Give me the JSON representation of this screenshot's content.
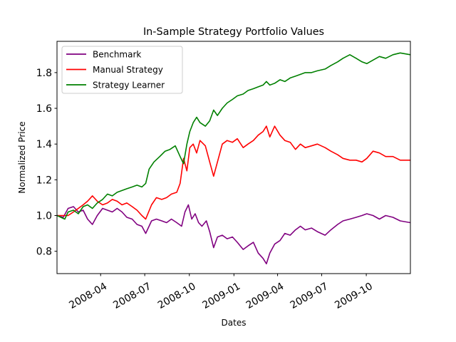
{
  "chart_data": {
    "type": "line",
    "title": "In-Sample Strategy Portfolio Values",
    "xlabel": "Dates",
    "ylabel": "Normalized Price",
    "xlim": [
      "2008-01-02",
      "2009-12-31"
    ],
    "ylim": [
      0.675,
      1.975
    ],
    "yticks": [
      0.8,
      1.0,
      1.2,
      1.4,
      1.6,
      1.8
    ],
    "ytick_labels": [
      "0.8",
      "1.0",
      "1.2",
      "1.4",
      "1.6",
      "1.8"
    ],
    "xticks": [
      "2008-04-01",
      "2008-07-01",
      "2008-10-01",
      "2009-01-01",
      "2009-04-01",
      "2009-07-01",
      "2009-10-01"
    ],
    "xtick_labels": [
      "2008-04",
      "2008-07",
      "2008-10",
      "2009-01",
      "2009-04",
      "2009-07",
      "2009-10"
    ],
    "grid": false,
    "legend_position": "upper-left",
    "series": [
      {
        "name": "Benchmark",
        "color": "#800080",
        "points": [
          [
            "2008-01-02",
            1.0
          ],
          [
            "2008-01-15",
            0.99
          ],
          [
            "2008-01-25",
            1.04
          ],
          [
            "2008-02-05",
            1.05
          ],
          [
            "2008-02-15",
            1.02
          ],
          [
            "2008-02-25",
            1.03
          ],
          [
            "2008-03-05",
            0.98
          ],
          [
            "2008-03-15",
            0.95
          ],
          [
            "2008-03-25",
            1.0
          ],
          [
            "2008-04-05",
            1.04
          ],
          [
            "2008-04-15",
            1.03
          ],
          [
            "2008-04-25",
            1.02
          ],
          [
            "2008-05-05",
            1.04
          ],
          [
            "2008-05-15",
            1.02
          ],
          [
            "2008-05-25",
            0.99
          ],
          [
            "2008-06-05",
            0.98
          ],
          [
            "2008-06-15",
            0.95
          ],
          [
            "2008-06-25",
            0.94
          ],
          [
            "2008-07-03",
            0.9
          ],
          [
            "2008-07-15",
            0.97
          ],
          [
            "2008-07-25",
            0.98
          ],
          [
            "2008-08-05",
            0.97
          ],
          [
            "2008-08-15",
            0.96
          ],
          [
            "2008-08-25",
            0.98
          ],
          [
            "2008-09-05",
            0.96
          ],
          [
            "2008-09-15",
            0.94
          ],
          [
            "2008-09-22",
            1.02
          ],
          [
            "2008-09-29",
            1.06
          ],
          [
            "2008-10-06",
            0.98
          ],
          [
            "2008-10-13",
            1.01
          ],
          [
            "2008-10-20",
            0.96
          ],
          [
            "2008-10-27",
            0.94
          ],
          [
            "2008-11-05",
            0.97
          ],
          [
            "2008-11-12",
            0.91
          ],
          [
            "2008-11-20",
            0.82
          ],
          [
            "2008-11-28",
            0.88
          ],
          [
            "2008-12-08",
            0.89
          ],
          [
            "2008-12-18",
            0.87
          ],
          [
            "2008-12-29",
            0.88
          ],
          [
            "2009-01-08",
            0.85
          ],
          [
            "2009-01-20",
            0.81
          ],
          [
            "2009-01-30",
            0.83
          ],
          [
            "2009-02-10",
            0.85
          ],
          [
            "2009-02-20",
            0.79
          ],
          [
            "2009-03-02",
            0.76
          ],
          [
            "2009-03-09",
            0.73
          ],
          [
            "2009-03-16",
            0.79
          ],
          [
            "2009-03-26",
            0.84
          ],
          [
            "2009-04-06",
            0.86
          ],
          [
            "2009-04-16",
            0.9
          ],
          [
            "2009-04-27",
            0.89
          ],
          [
            "2009-05-08",
            0.92
          ],
          [
            "2009-05-18",
            0.94
          ],
          [
            "2009-05-28",
            0.92
          ],
          [
            "2009-06-10",
            0.93
          ],
          [
            "2009-06-22",
            0.91
          ],
          [
            "2009-07-08",
            0.89
          ],
          [
            "2009-07-20",
            0.92
          ],
          [
            "2009-08-03",
            0.95
          ],
          [
            "2009-08-14",
            0.97
          ],
          [
            "2009-08-28",
            0.98
          ],
          [
            "2009-09-10",
            0.99
          ],
          [
            "2009-09-22",
            1.0
          ],
          [
            "2009-10-02",
            1.01
          ],
          [
            "2009-10-15",
            1.0
          ],
          [
            "2009-10-28",
            0.98
          ],
          [
            "2009-11-10",
            1.0
          ],
          [
            "2009-11-25",
            0.99
          ],
          [
            "2009-12-10",
            0.97
          ],
          [
            "2009-12-31",
            0.96
          ]
        ]
      },
      {
        "name": "Manual Strategy",
        "color": "#ff0000",
        "points": [
          [
            "2008-01-02",
            1.0
          ],
          [
            "2008-01-25",
            1.0
          ],
          [
            "2008-02-05",
            1.02
          ],
          [
            "2008-02-15",
            1.04
          ],
          [
            "2008-02-25",
            1.06
          ],
          [
            "2008-03-05",
            1.08
          ],
          [
            "2008-03-15",
            1.11
          ],
          [
            "2008-03-25",
            1.08
          ],
          [
            "2008-04-05",
            1.06
          ],
          [
            "2008-04-15",
            1.07
          ],
          [
            "2008-04-25",
            1.09
          ],
          [
            "2008-05-05",
            1.08
          ],
          [
            "2008-05-15",
            1.06
          ],
          [
            "2008-05-25",
            1.07
          ],
          [
            "2008-06-05",
            1.05
          ],
          [
            "2008-06-15",
            1.03
          ],
          [
            "2008-06-25",
            1.0
          ],
          [
            "2008-07-03",
            0.98
          ],
          [
            "2008-07-15",
            1.06
          ],
          [
            "2008-07-25",
            1.1
          ],
          [
            "2008-08-05",
            1.09
          ],
          [
            "2008-08-15",
            1.1
          ],
          [
            "2008-08-25",
            1.12
          ],
          [
            "2008-09-05",
            1.13
          ],
          [
            "2008-09-12",
            1.18
          ],
          [
            "2008-09-19",
            1.32
          ],
          [
            "2008-09-26",
            1.25
          ],
          [
            "2008-10-02",
            1.38
          ],
          [
            "2008-10-09",
            1.4
          ],
          [
            "2008-10-16",
            1.35
          ],
          [
            "2008-10-23",
            1.42
          ],
          [
            "2008-11-03",
            1.39
          ],
          [
            "2008-11-12",
            1.3
          ],
          [
            "2008-11-20",
            1.22
          ],
          [
            "2008-11-28",
            1.3
          ],
          [
            "2008-12-08",
            1.4
          ],
          [
            "2008-12-18",
            1.42
          ],
          [
            "2008-12-29",
            1.41
          ],
          [
            "2009-01-08",
            1.43
          ],
          [
            "2009-01-20",
            1.38
          ],
          [
            "2009-01-30",
            1.4
          ],
          [
            "2009-02-10",
            1.42
          ],
          [
            "2009-02-20",
            1.45
          ],
          [
            "2009-03-02",
            1.47
          ],
          [
            "2009-03-09",
            1.5
          ],
          [
            "2009-03-16",
            1.44
          ],
          [
            "2009-03-26",
            1.5
          ],
          [
            "2009-04-06",
            1.45
          ],
          [
            "2009-04-16",
            1.42
          ],
          [
            "2009-04-27",
            1.41
          ],
          [
            "2009-05-08",
            1.37
          ],
          [
            "2009-05-18",
            1.4
          ],
          [
            "2009-05-28",
            1.38
          ],
          [
            "2009-06-10",
            1.39
          ],
          [
            "2009-06-22",
            1.4
          ],
          [
            "2009-07-08",
            1.38
          ],
          [
            "2009-07-20",
            1.36
          ],
          [
            "2009-08-03",
            1.34
          ],
          [
            "2009-08-14",
            1.32
          ],
          [
            "2009-08-28",
            1.31
          ],
          [
            "2009-09-10",
            1.31
          ],
          [
            "2009-09-22",
            1.3
          ],
          [
            "2009-10-02",
            1.32
          ],
          [
            "2009-10-15",
            1.36
          ],
          [
            "2009-10-28",
            1.35
          ],
          [
            "2009-11-10",
            1.33
          ],
          [
            "2009-11-25",
            1.33
          ],
          [
            "2009-12-10",
            1.31
          ],
          [
            "2009-12-31",
            1.31
          ]
        ]
      },
      {
        "name": "Strategy Learner",
        "color": "#008000",
        "points": [
          [
            "2008-01-02",
            1.0
          ],
          [
            "2008-01-10",
            0.99
          ],
          [
            "2008-01-18",
            0.98
          ],
          [
            "2008-01-25",
            1.02
          ],
          [
            "2008-02-05",
            1.03
          ],
          [
            "2008-02-15",
            1.01
          ],
          [
            "2008-02-25",
            1.05
          ],
          [
            "2008-03-05",
            1.06
          ],
          [
            "2008-03-15",
            1.04
          ],
          [
            "2008-03-25",
            1.07
          ],
          [
            "2008-04-05",
            1.09
          ],
          [
            "2008-04-15",
            1.12
          ],
          [
            "2008-04-25",
            1.11
          ],
          [
            "2008-05-05",
            1.13
          ],
          [
            "2008-05-15",
            1.14
          ],
          [
            "2008-05-25",
            1.15
          ],
          [
            "2008-06-05",
            1.16
          ],
          [
            "2008-06-15",
            1.17
          ],
          [
            "2008-06-25",
            1.16
          ],
          [
            "2008-07-03",
            1.18
          ],
          [
            "2008-07-10",
            1.26
          ],
          [
            "2008-07-20",
            1.3
          ],
          [
            "2008-08-01",
            1.33
          ],
          [
            "2008-08-12",
            1.36
          ],
          [
            "2008-08-22",
            1.37
          ],
          [
            "2008-09-02",
            1.39
          ],
          [
            "2008-09-12",
            1.33
          ],
          [
            "2008-09-19",
            1.29
          ],
          [
            "2008-09-26",
            1.4
          ],
          [
            "2008-10-02",
            1.47
          ],
          [
            "2008-10-09",
            1.52
          ],
          [
            "2008-10-16",
            1.55
          ],
          [
            "2008-10-23",
            1.52
          ],
          [
            "2008-11-03",
            1.5
          ],
          [
            "2008-11-12",
            1.53
          ],
          [
            "2008-11-20",
            1.59
          ],
          [
            "2008-11-28",
            1.56
          ],
          [
            "2008-12-08",
            1.6
          ],
          [
            "2008-12-18",
            1.63
          ],
          [
            "2008-12-29",
            1.65
          ],
          [
            "2009-01-08",
            1.67
          ],
          [
            "2009-01-20",
            1.68
          ],
          [
            "2009-01-30",
            1.7
          ],
          [
            "2009-02-10",
            1.71
          ],
          [
            "2009-02-20",
            1.72
          ],
          [
            "2009-03-02",
            1.73
          ],
          [
            "2009-03-09",
            1.75
          ],
          [
            "2009-03-16",
            1.73
          ],
          [
            "2009-03-26",
            1.74
          ],
          [
            "2009-04-06",
            1.76
          ],
          [
            "2009-04-16",
            1.75
          ],
          [
            "2009-04-27",
            1.77
          ],
          [
            "2009-05-08",
            1.78
          ],
          [
            "2009-05-18",
            1.79
          ],
          [
            "2009-05-28",
            1.8
          ],
          [
            "2009-06-10",
            1.8
          ],
          [
            "2009-06-22",
            1.81
          ],
          [
            "2009-07-08",
            1.82
          ],
          [
            "2009-07-20",
            1.84
          ],
          [
            "2009-08-03",
            1.86
          ],
          [
            "2009-08-14",
            1.88
          ],
          [
            "2009-08-28",
            1.9
          ],
          [
            "2009-09-10",
            1.88
          ],
          [
            "2009-09-22",
            1.86
          ],
          [
            "2009-10-02",
            1.85
          ],
          [
            "2009-10-15",
            1.87
          ],
          [
            "2009-10-28",
            1.89
          ],
          [
            "2009-11-10",
            1.88
          ],
          [
            "2009-11-25",
            1.9
          ],
          [
            "2009-12-10",
            1.91
          ],
          [
            "2009-12-31",
            1.9
          ]
        ]
      }
    ]
  }
}
